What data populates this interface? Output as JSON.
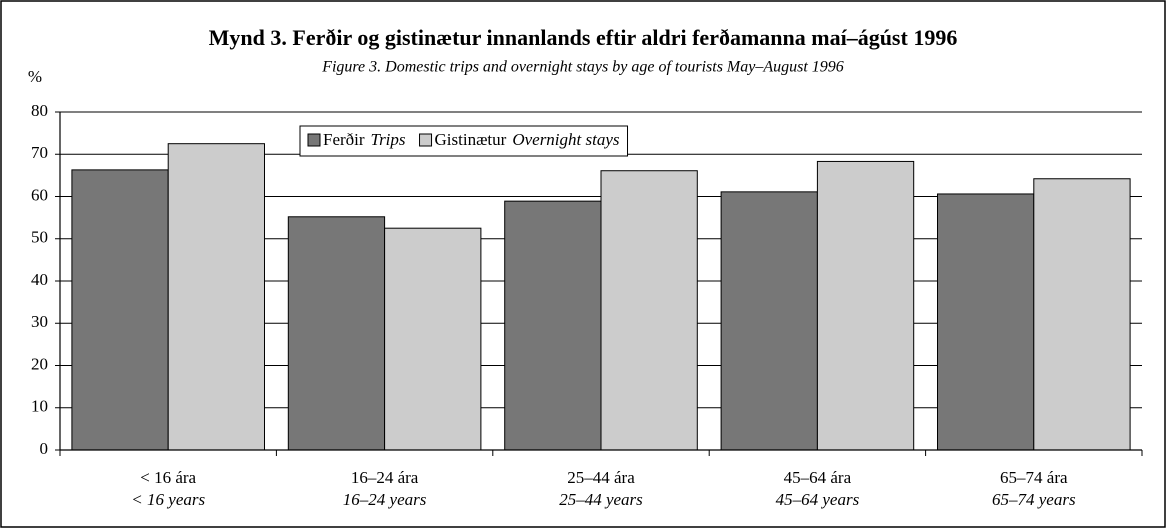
{
  "chart_data": {
    "type": "bar",
    "title": "Mynd 3.  Ferðir og gistinætur innanlands eftir aldri ferðamanna maí–ágúst 1996",
    "subtitle": "Figure 3.  Domestic trips and overnight stays by age of tourists May–August 1996",
    "y_label": "%",
    "categories": [
      "< 16 ára",
      "16–24 ára",
      "25–44 ára",
      "45–64 ára",
      "65–74 ára"
    ],
    "categories_en": [
      "< 16 years",
      "16–24 years",
      "25–44 years",
      "45–64 years",
      "65–74 years"
    ],
    "series": [
      {
        "name": "Ferðir",
        "name_en": "Trips",
        "color": "#777777",
        "values": [
          66.3,
          55.2,
          58.9,
          61.1,
          60.6
        ]
      },
      {
        "name": "Gistinætur",
        "name_en": "Overnight stays",
        "color": "#cccccc",
        "values": [
          72.5,
          52.5,
          66.1,
          68.3,
          64.2
        ]
      }
    ],
    "ylim": [
      0,
      80
    ],
    "yticks": [
      0,
      10,
      20,
      30,
      40,
      50,
      60,
      70,
      80
    ],
    "grid": true,
    "legend": "top"
  }
}
